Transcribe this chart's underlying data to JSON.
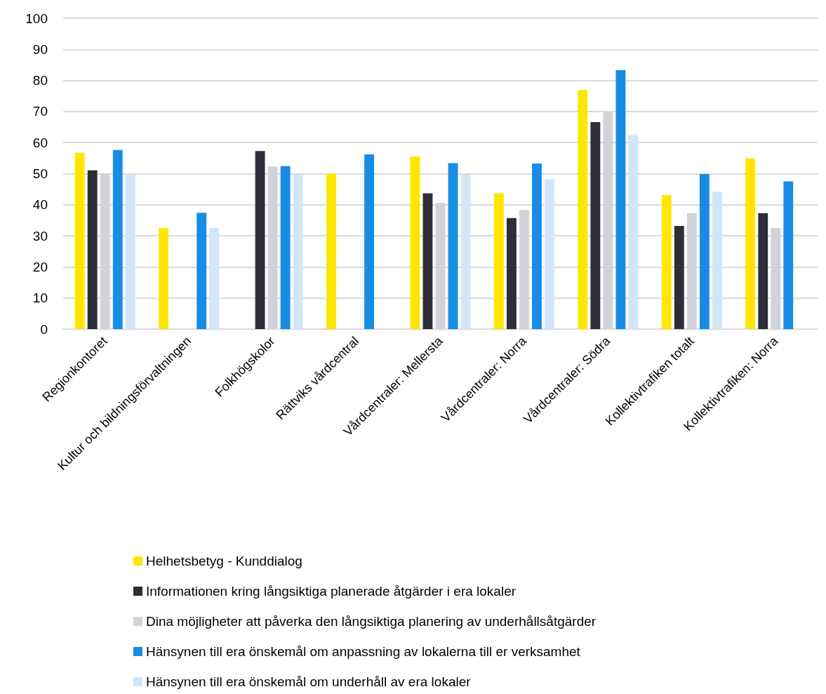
{
  "chart_data": {
    "type": "bar",
    "categories": [
      "Regionkontoret",
      "Kultur och bildningsförvaltningen",
      "Folkhögskolor",
      "Rättviks vårdcentral",
      "Vårdcentraler: Mellersta",
      "Vårdcentraler: Norra",
      "Vårdcentraler: Södra",
      "Kollektivtrafiken totalt",
      "Kollektivtrafiken: Norra"
    ],
    "series": [
      {
        "name": "Helhetsbetyg - Kunddialog",
        "color": "#ffe600",
        "values": [
          56.8,
          32.5,
          null,
          50,
          55.6,
          43.7,
          76.9,
          43.1,
          54.9
        ]
      },
      {
        "name": "Informationen kring långsiktiga planerade åtgärder i era lokaler",
        "color": "#2e2e38",
        "values": [
          51.1,
          null,
          57.3,
          null,
          43.7,
          35.7,
          66.6,
          33.2,
          37.3
        ]
      },
      {
        "name": "Dina möjligheter att påverka den långsiktiga planering av underhållsåtgärder",
        "color": "#d2d2da",
        "values": [
          50,
          null,
          52.3,
          null,
          40.6,
          38.3,
          69.9,
          37.3,
          32.5
        ]
      },
      {
        "name": "Hänsynen till era önskemål om anpassning av lokalerna till er verksamhet",
        "color": "#188ce5",
        "values": [
          57.6,
          37.4,
          52.4,
          56.2,
          53.4,
          53.3,
          83.3,
          49.9,
          47.5
        ]
      },
      {
        "name": "Hänsynen till era önskemål om underhåll av era lokaler",
        "color": "#d1e6f9",
        "values": [
          50,
          32.5,
          50,
          null,
          50,
          48.2,
          62.4,
          44.3,
          null
        ]
      }
    ],
    "ylim": [
      0,
      100
    ],
    "yticks": [
      0,
      10,
      20,
      30,
      40,
      50,
      60,
      70,
      80,
      90,
      100
    ],
    "grid": "y",
    "legend": "bottom"
  }
}
